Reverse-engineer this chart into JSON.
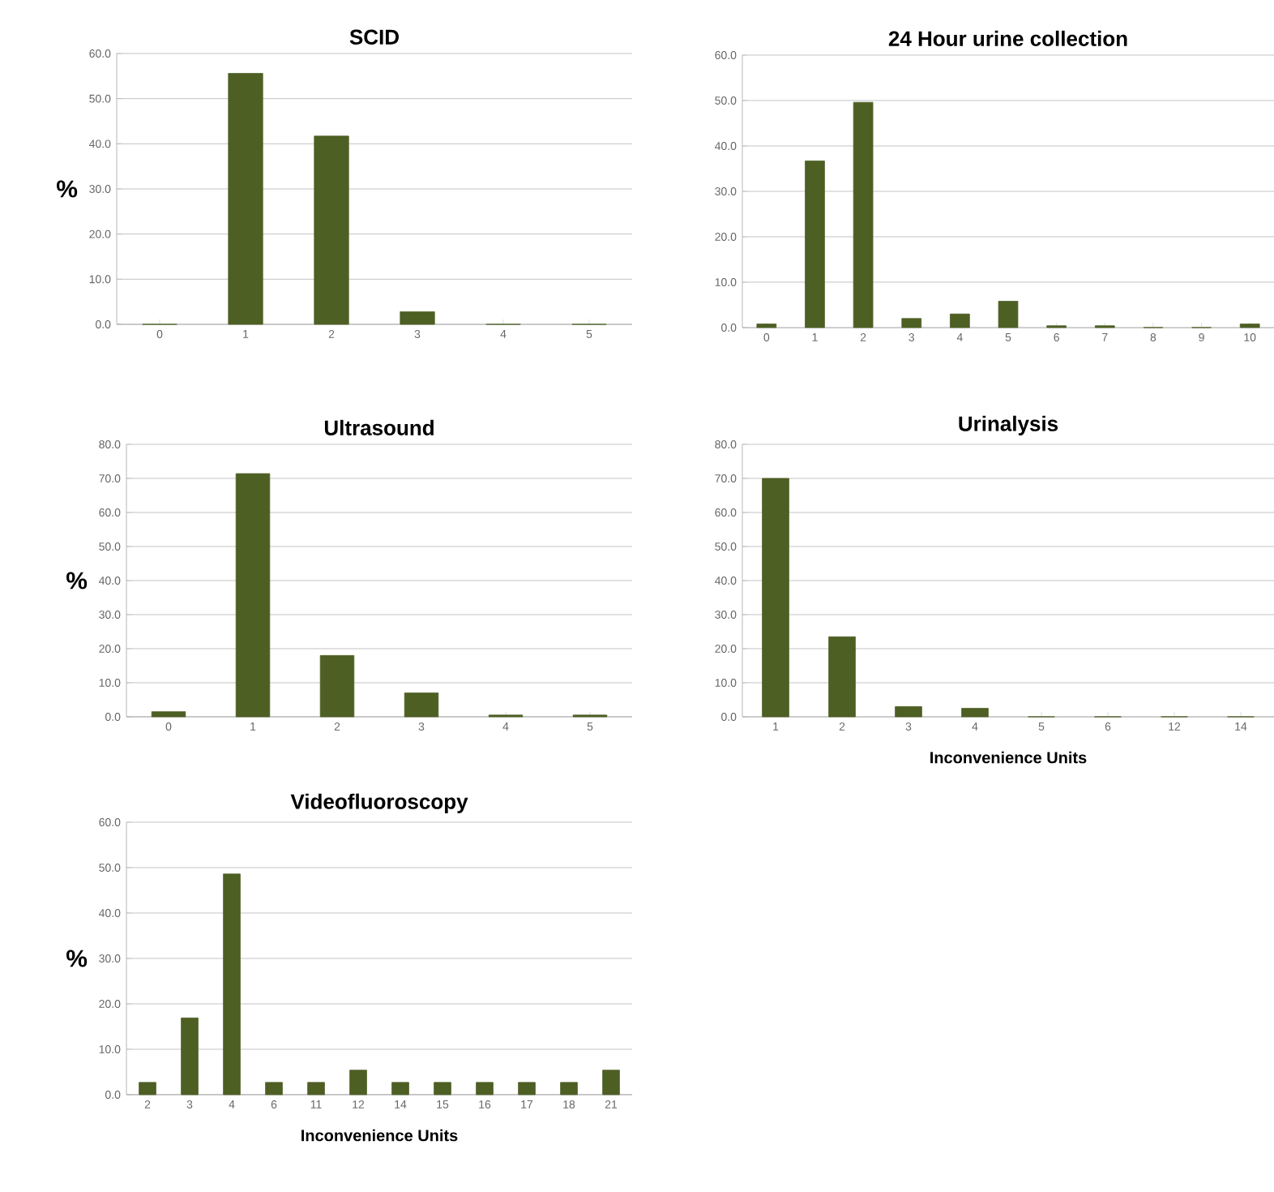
{
  "chart_data": [
    {
      "type": "bar",
      "title": "SCID",
      "ylabel": "%",
      "categories": [
        "0",
        "1",
        "2",
        "3",
        "4",
        "5"
      ],
      "values": [
        0,
        55.6,
        41.7,
        2.8,
        0,
        0
      ],
      "color": "#4e5f24",
      "ylim": [
        0,
        60
      ],
      "yticks": [
        {
          "value": 0,
          "label": "0.0"
        },
        {
          "value": 10,
          "label": "10.0"
        },
        {
          "value": 20,
          "label": "20.0"
        },
        {
          "value": 30,
          "label": "30.0"
        },
        {
          "value": 40,
          "label": "40.0"
        },
        {
          "value": 50,
          "label": "50.0"
        },
        {
          "value": 60,
          "label": "60.0"
        }
      ],
      "grid": "y"
    },
    {
      "type": "bar",
      "title": "24 Hour urine collection",
      "categories": [
        "0",
        "1",
        "2",
        "3",
        "4",
        "5",
        "6",
        "7",
        "8",
        "9",
        "10"
      ],
      "values": [
        0.8,
        36.7,
        49.6,
        2.0,
        3.0,
        5.8,
        0.4,
        0.4,
        0,
        0,
        0.8
      ],
      "color": "#4e5f24",
      "ylim": [
        0,
        60
      ],
      "yticks": [
        {
          "value": 0,
          "label": "0.0"
        },
        {
          "value": 10,
          "label": "10.0"
        },
        {
          "value": 20,
          "label": "20.0"
        },
        {
          "value": 30,
          "label": "30.0"
        },
        {
          "value": 40,
          "label": "40.0"
        },
        {
          "value": 50,
          "label": "50.0"
        },
        {
          "value": 60,
          "label": "60.0"
        }
      ],
      "grid": "y"
    },
    {
      "type": "bar",
      "title": "Ultrasound",
      "ylabel": "%",
      "categories": [
        "0",
        "1",
        "2",
        "3",
        "4",
        "5"
      ],
      "values": [
        1.5,
        71.4,
        18.0,
        7.0,
        0.5,
        0.5
      ],
      "color": "#4e5f24",
      "ylim": [
        0,
        80
      ],
      "yticks": [
        {
          "value": 0,
          "label": "0.0"
        },
        {
          "value": 10,
          "label": "10.0"
        },
        {
          "value": 20,
          "label": "20.0"
        },
        {
          "value": 30,
          "label": "30.0"
        },
        {
          "value": 40,
          "label": "40.0"
        },
        {
          "value": 50,
          "label": "50.0"
        },
        {
          "value": 60,
          "label": "60.0"
        },
        {
          "value": 70,
          "label": "70.0"
        },
        {
          "value": 80,
          "label": "80.0"
        }
      ],
      "grid": "y"
    },
    {
      "type": "bar",
      "title": "Urinalysis",
      "xlabel": "Inconvenience Units",
      "categories": [
        "1",
        "2",
        "3",
        "4",
        "5",
        "6",
        "12",
        "14"
      ],
      "values": [
        70.0,
        23.5,
        3.0,
        2.5,
        0,
        0,
        0,
        0
      ],
      "color": "#4e5f24",
      "ylim": [
        0,
        80
      ],
      "yticks": [
        {
          "value": 0,
          "label": "0.0"
        },
        {
          "value": 10,
          "label": "10.0"
        },
        {
          "value": 20,
          "label": "20.0"
        },
        {
          "value": 30,
          "label": "30.0"
        },
        {
          "value": 40,
          "label": "40.0"
        },
        {
          "value": 50,
          "label": "50.0"
        },
        {
          "value": 60,
          "label": "60.0"
        },
        {
          "value": 70,
          "label": "70.0"
        },
        {
          "value": 80,
          "label": "80.0"
        }
      ],
      "grid": "y"
    },
    {
      "type": "bar",
      "title": "Videofluoroscopy",
      "ylabel": "%",
      "xlabel": "Inconvenience Units",
      "categories": [
        "2",
        "3",
        "4",
        "6",
        "11",
        "12",
        "14",
        "15",
        "16",
        "17",
        "18",
        "21"
      ],
      "values": [
        2.7,
        16.9,
        48.6,
        2.7,
        2.7,
        5.4,
        2.7,
        2.7,
        2.7,
        2.7,
        2.7,
        5.4
      ],
      "color": "#4e5f24",
      "ylim": [
        0,
        60
      ],
      "yticks": [
        {
          "value": 0,
          "label": "0.0"
        },
        {
          "value": 10,
          "label": "10.0"
        },
        {
          "value": 20,
          "label": "20.0"
        },
        {
          "value": 30,
          "label": "30.0"
        },
        {
          "value": 40,
          "label": "40.0"
        },
        {
          "value": 50,
          "label": "50.0"
        },
        {
          "value": 60,
          "label": "60.0"
        }
      ],
      "grid": "y"
    }
  ]
}
